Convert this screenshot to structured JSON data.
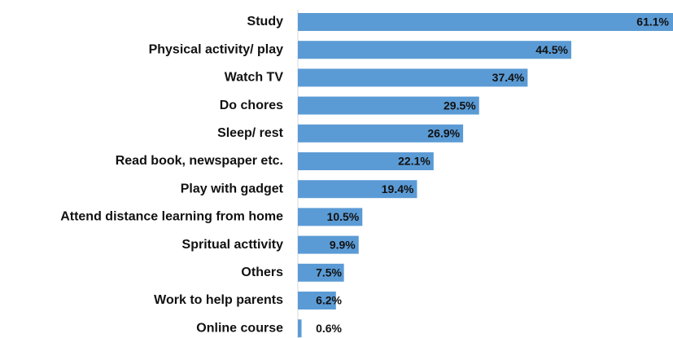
{
  "chart_data": {
    "type": "barh",
    "categories": [
      "Study",
      "Physical activity/ play",
      "Watch TV",
      "Do chores",
      "Sleep/ rest",
      "Read book, newspaper etc.",
      "Play with gadget",
      "Attend distance learning from home",
      "Spritual acttivity",
      "Others",
      "Work to help parents",
      "Online course"
    ],
    "values": [
      61.1,
      44.5,
      37.4,
      29.5,
      26.9,
      22.1,
      19.4,
      10.5,
      9.9,
      7.5,
      6.2,
      0.6
    ],
    "value_labels": [
      "61.1%",
      "44.5%",
      "37.4%",
      "29.5%",
      "26.9%",
      "22.1%",
      "19.4%",
      "10.5%",
      "9.9%",
      "7.5%",
      "6.2%",
      "0.6%"
    ],
    "color": "#5b9bd5"
  }
}
